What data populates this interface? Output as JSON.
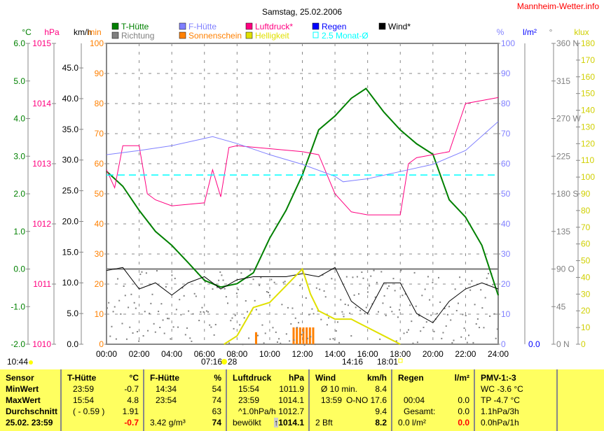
{
  "chart_data": {
    "type": "line",
    "title": "Samstag, 25.02.2006",
    "brand": "Mannheim-Wetter.info",
    "x_ticks": [
      "00:00",
      "02:00",
      "04:00",
      "06:00",
      "08:00",
      "10:00",
      "12:00",
      "14:00",
      "16:00",
      "18:00",
      "20:00",
      "22:00",
      "24:00"
    ],
    "xlim": [
      0,
      24
    ],
    "axes": {
      "temp": {
        "unit": "°C",
        "ticks": [
          "6.0",
          "5.0",
          "4.0",
          "3.0",
          "2.0",
          "1.0",
          "0.0",
          "-1.0",
          "-2.0"
        ],
        "range": [
          -2,
          6
        ],
        "color": "#008000"
      },
      "pressure": {
        "unit": "hPa",
        "ticks": [
          "1015",
          "1014",
          "1013",
          "1012",
          "1011",
          "1010"
        ],
        "range": [
          1010,
          1015
        ],
        "color": "#ff0080"
      },
      "wind": {
        "unit": "km/h",
        "ticks": [
          "45.0",
          "40.0",
          "35.0",
          "30.0",
          "25.0",
          "20.0",
          "15.0",
          "10.0",
          "5.0",
          "0.0"
        ],
        "range": [
          0,
          49
        ],
        "color": "#000000"
      },
      "sun": {
        "unit": "min",
        "ticks": [
          "100",
          "90",
          "80",
          "70",
          "60",
          "50",
          "40",
          "30",
          "20",
          "10",
          "0"
        ],
        "range": [
          0,
          100
        ],
        "color": "#ff8000"
      },
      "humidity": {
        "unit": "%",
        "ticks": [
          "100",
          "90",
          "80",
          "70",
          "60",
          "50",
          "40",
          "30",
          "20",
          "10",
          "0"
        ],
        "range": [
          0,
          100
        ],
        "color": "#8080ff"
      },
      "rain": {
        "unit": "l/m²",
        "ticks": [
          "0.0"
        ],
        "color": "#0000ff"
      },
      "direction": {
        "unit": "°",
        "ticks": [
          "360 N",
          "315",
          "270 W",
          "225",
          "180 S",
          "135",
          "90  O",
          "45",
          "0   N"
        ],
        "range": [
          0,
          360
        ],
        "color": "#808080"
      },
      "brightness": {
        "unit": "klux",
        "ticks": [
          "180",
          "170",
          "160",
          "150",
          "140",
          "130",
          "120",
          "110",
          "100",
          "90",
          "80",
          "70",
          "60",
          "50",
          "40",
          "30",
          "20",
          "10",
          "0"
        ],
        "range": [
          0,
          180
        ],
        "color": "#e0e000"
      }
    },
    "legend": [
      {
        "name": "T-Hütte",
        "color": "#008000"
      },
      {
        "name": "F-Hütte",
        "color": "#8080ff"
      },
      {
        "name": "Luftdruck*",
        "color": "#ff0080"
      },
      {
        "name": "Regen",
        "color": "#0000ff"
      },
      {
        "name": "Wind*",
        "color": "#000000"
      },
      {
        "name": "Richtung",
        "color": "#808080"
      },
      {
        "name": "Sonnenschein",
        "color": "#ff8000"
      },
      {
        "name": "Helligkeit",
        "color": "#e0e000"
      },
      {
        "name": "2.5 Monat-Ø",
        "color": "#00ffff"
      }
    ],
    "series": [
      {
        "name": "T-Hütte",
        "axis": "temp",
        "x": [
          0,
          1,
          2,
          3,
          4,
          5,
          6,
          7,
          8,
          9,
          10,
          11,
          12,
          13,
          14,
          15,
          15.9,
          17,
          18,
          19,
          20,
          21,
          22,
          23,
          24
        ],
        "values": [
          2.6,
          2.2,
          1.56,
          1.0,
          0.63,
          0.17,
          -0.3,
          -0.48,
          -0.39,
          -0.1,
          0.82,
          1.56,
          2.5,
          3.7,
          4.07,
          4.54,
          4.8,
          4.17,
          3.7,
          3.33,
          3.05,
          1.84,
          1.38,
          0.63,
          -0.7
        ]
      },
      {
        "name": "Luftdruck*",
        "axis": "pressure",
        "x": [
          0,
          0.5,
          1,
          2,
          2.5,
          3,
          4,
          6,
          6.5,
          7,
          7.5,
          8,
          10,
          12,
          13,
          14,
          15,
          16,
          18,
          18.5,
          19,
          21,
          21.5,
          22,
          24
        ],
        "values": [
          1012.9,
          1012.6,
          1013.3,
          1013.3,
          1012.5,
          1012.4,
          1012.3,
          1012.35,
          1012.9,
          1012.45,
          1013.27,
          1013.3,
          1013.25,
          1013.2,
          1013.15,
          1012.5,
          1012.2,
          1012.15,
          1012.15,
          1013.0,
          1013.1,
          1013.2,
          1013.6,
          1014.0,
          1014.1
        ]
      },
      {
        "name": "F-Hütte",
        "axis": "humidity",
        "x": [
          0,
          2,
          4,
          6,
          6.5,
          8,
          10,
          12,
          14,
          14.5,
          16,
          18,
          20,
          22,
          24
        ],
        "values": [
          63,
          64.4,
          66,
          68.4,
          69,
          66.7,
          63,
          59.8,
          55.8,
          54,
          55,
          57.4,
          59.8,
          64.4,
          74
        ]
      },
      {
        "name": "Wind*",
        "axis": "wind",
        "x": [
          0,
          1,
          2,
          3,
          4,
          5,
          6,
          7,
          8,
          9,
          10,
          11,
          12,
          13,
          14,
          15,
          16,
          17,
          18,
          19,
          20,
          21,
          22,
          23,
          24
        ],
        "values": [
          12,
          12.5,
          9,
          10,
          8,
          10,
          11,
          9,
          10.5,
          11,
          11,
          11,
          11.5,
          11,
          12.5,
          7,
          5,
          10,
          10,
          5,
          3.5,
          7,
          9,
          10,
          9
        ]
      },
      {
        "name": "Helligkeit",
        "axis": "brightness",
        "x": [
          7.2,
          8,
          9,
          10,
          11,
          11.5,
          12,
          12.5,
          13,
          14,
          15,
          16,
          17,
          18
        ],
        "values": [
          0,
          5,
          22,
          25,
          35,
          40,
          45,
          30,
          20,
          15,
          15,
          10,
          5,
          0
        ]
      },
      {
        "name": "2.5 Monat-Ø",
        "axis": "temp",
        "x": [
          0,
          24
        ],
        "values": [
          2.5,
          2.5
        ]
      }
    ],
    "sunshine_bars": {
      "axis": "sun",
      "x": [
        9.1,
        11.4,
        11.6,
        11.8,
        12.0,
        12.2,
        12.4,
        12.6
      ],
      "values": [
        4,
        5.6,
        5.6,
        5.6,
        5.6,
        5.6,
        5.6,
        5.6
      ]
    },
    "sun_events": {
      "daylength": "10:44",
      "sunrise": "07:16",
      "sunrise_suffix": "28",
      "noon": "14:16",
      "sunset": "18:01"
    }
  },
  "table": {
    "sensor": {
      "head": "Sensor",
      "rows": [
        "MinWert",
        "MaxWert",
        "Durchschnitt",
        "25.02. 23:59"
      ]
    },
    "temp": {
      "head": "T-Hütte",
      "unit": "°C",
      "rows": [
        [
          "23:59",
          "-0.7"
        ],
        [
          "15:54",
          "4.8"
        ],
        [
          "( - 0.59 )",
          "1.91"
        ],
        [
          "",
          "-0.7"
        ]
      ]
    },
    "hum": {
      "head": "F-Hütte",
      "unit": "%",
      "rows": [
        [
          "14:34",
          "54"
        ],
        [
          "23:54",
          "74"
        ],
        [
          "",
          "63"
        ],
        [
          "3.42 g/m³",
          "74"
        ]
      ]
    },
    "press": {
      "head": "Luftdruck",
      "unit": "hPa",
      "rows": [
        [
          "15:54",
          "1011.9"
        ],
        [
          "23:59",
          "1014.1"
        ],
        [
          "^1.0hPa/h",
          "1012.7"
        ],
        [
          "bewölkt",
          "1014.1"
        ]
      ],
      "trend_icon": "↑"
    },
    "wind": {
      "head": "Wind",
      "unit": "km/h",
      "rows": [
        [
          "Ø 10 min.",
          "8.4"
        ],
        [
          "13:59",
          "O-NO 17.6"
        ],
        [
          "",
          "9.4"
        ],
        [
          "2 Bft",
          "8.2"
        ]
      ]
    },
    "rain": {
      "head": "Regen",
      "unit": "l/m²",
      "rows": [
        [
          "",
          ""
        ],
        [
          "00:04",
          "0.0"
        ],
        [
          "Gesamt:",
          "0.0"
        ],
        [
          "0.0 l/m²",
          "0.0"
        ]
      ]
    },
    "pmv": {
      "head": "PMV-1:-3",
      "rows": [
        "WC -3.6 °C",
        "TP -4.7 °C",
        "1.1hPa/3h",
        "0.0hPa/1h"
      ]
    }
  }
}
